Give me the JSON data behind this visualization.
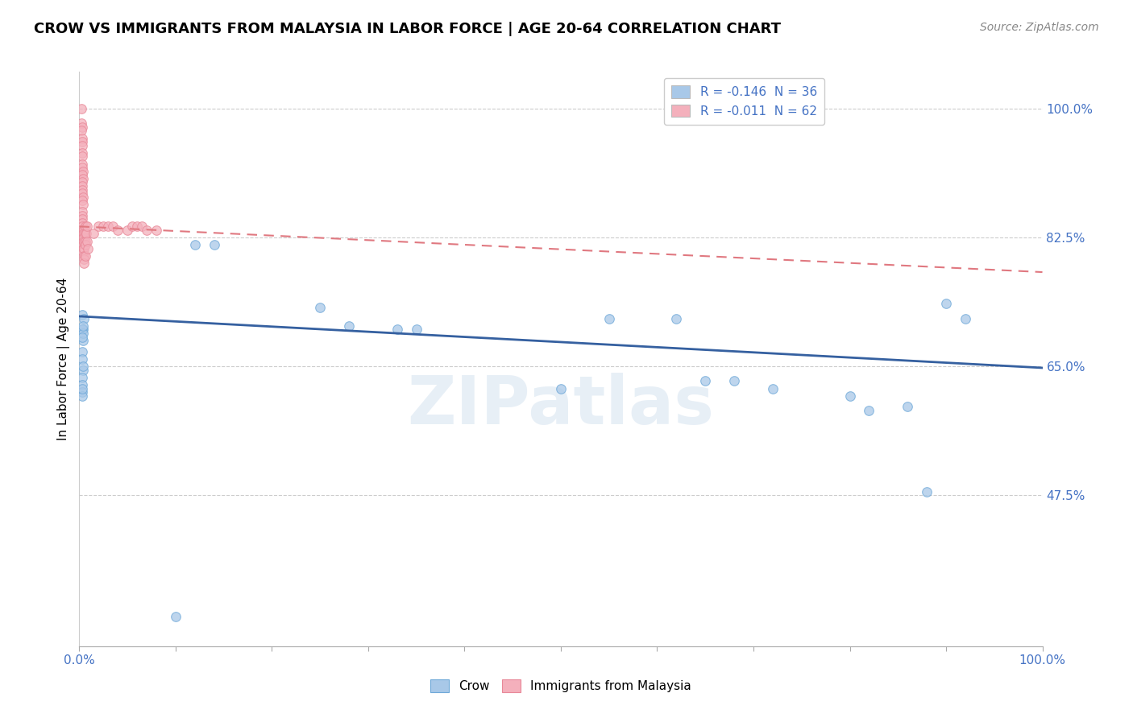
{
  "title": "CROW VS IMMIGRANTS FROM MALAYSIA IN LABOR FORCE | AGE 20-64 CORRELATION CHART",
  "source": "Source: ZipAtlas.com",
  "ylabel": "In Labor Force | Age 20-64",
  "watermark": "ZIPatlas",
  "legend_top": [
    {
      "label": "R = -0.146  N = 36",
      "facecolor": "#a8c8e8"
    },
    {
      "label": "R = -0.011  N = 62",
      "facecolor": "#f4b0bc"
    }
  ],
  "legend_bottom": [
    "Crow",
    "Immigrants from Malaysia"
  ],
  "crow_facecolor": "#a8c8e8",
  "crow_edgecolor": "#6ea8d8",
  "malaysia_facecolor": "#f4b0bc",
  "malaysia_edgecolor": "#e88898",
  "crow_trend_color": "#3560a0",
  "malaysia_trend_color": "#e07880",
  "crow_scatter_x": [
    0.003,
    0.004,
    0.004,
    0.003,
    0.005,
    0.004,
    0.003,
    0.003,
    0.004,
    0.003,
    0.004,
    0.003,
    0.004,
    0.003,
    0.003,
    0.003,
    0.003,
    0.12,
    0.14,
    0.25,
    0.28,
    0.33,
    0.35,
    0.5,
    0.55,
    0.62,
    0.65,
    0.68,
    0.72,
    0.8,
    0.82,
    0.86,
    0.88,
    0.9,
    0.92,
    0.1
  ],
  "crow_scatter_y": [
    0.72,
    0.7,
    0.685,
    0.7,
    0.715,
    0.695,
    0.67,
    0.66,
    0.705,
    0.69,
    0.645,
    0.635,
    0.65,
    0.625,
    0.615,
    0.61,
    0.62,
    0.815,
    0.815,
    0.73,
    0.705,
    0.7,
    0.7,
    0.62,
    0.715,
    0.715,
    0.63,
    0.63,
    0.62,
    0.61,
    0.59,
    0.595,
    0.48,
    0.735,
    0.715,
    0.31
  ],
  "malaysia_scatter_x": [
    0.002,
    0.002,
    0.003,
    0.002,
    0.003,
    0.003,
    0.003,
    0.003,
    0.003,
    0.003,
    0.003,
    0.004,
    0.003,
    0.004,
    0.003,
    0.003,
    0.003,
    0.003,
    0.004,
    0.003,
    0.004,
    0.003,
    0.003,
    0.003,
    0.003,
    0.003,
    0.004,
    0.004,
    0.004,
    0.004,
    0.004,
    0.004,
    0.004,
    0.005,
    0.005,
    0.005,
    0.005,
    0.005,
    0.005,
    0.005,
    0.005,
    0.006,
    0.006,
    0.006,
    0.006,
    0.006,
    0.007,
    0.008,
    0.008,
    0.009,
    0.015,
    0.02,
    0.025,
    0.03,
    0.035,
    0.04,
    0.05,
    0.055,
    0.06,
    0.065,
    0.07,
    0.08
  ],
  "malaysia_scatter_y": [
    1.0,
    0.98,
    0.975,
    0.97,
    0.96,
    0.955,
    0.95,
    0.94,
    0.935,
    0.925,
    0.92,
    0.915,
    0.91,
    0.905,
    0.9,
    0.895,
    0.89,
    0.885,
    0.88,
    0.875,
    0.87,
    0.86,
    0.855,
    0.85,
    0.845,
    0.84,
    0.835,
    0.83,
    0.825,
    0.82,
    0.815,
    0.81,
    0.805,
    0.835,
    0.83,
    0.825,
    0.82,
    0.81,
    0.8,
    0.795,
    0.79,
    0.84,
    0.83,
    0.82,
    0.815,
    0.8,
    0.83,
    0.84,
    0.82,
    0.81,
    0.83,
    0.84,
    0.84,
    0.84,
    0.84,
    0.835,
    0.835,
    0.84,
    0.84,
    0.84,
    0.835,
    0.835
  ],
  "crow_trend_x": [
    0.0,
    1.0
  ],
  "crow_trend_y": [
    0.718,
    0.648
  ],
  "malaysia_trend_x": [
    0.0,
    1.0
  ],
  "malaysia_trend_y": [
    0.84,
    0.778
  ],
  "xlim": [
    0.0,
    1.0
  ],
  "ylim": [
    0.27,
    1.05
  ],
  "yticks": [
    0.475,
    0.65,
    0.825,
    1.0
  ],
  "ytick_labels": [
    "47.5%",
    "65.0%",
    "82.5%",
    "100.0%"
  ],
  "xtick_positions": [
    0.0,
    0.1,
    0.2,
    0.3,
    0.4,
    0.5,
    0.6,
    0.7,
    0.8,
    0.9,
    1.0
  ],
  "xtick_labels_visible": [
    "0.0%",
    "",
    "",
    "",
    "",
    "",
    "",
    "",
    "",
    "",
    "100.0%"
  ],
  "grid_color": "#cccccc",
  "background_color": "#ffffff",
  "title_fontsize": 13,
  "tick_color": "#4472c4",
  "scatter_size": 70,
  "scatter_alpha": 0.75
}
